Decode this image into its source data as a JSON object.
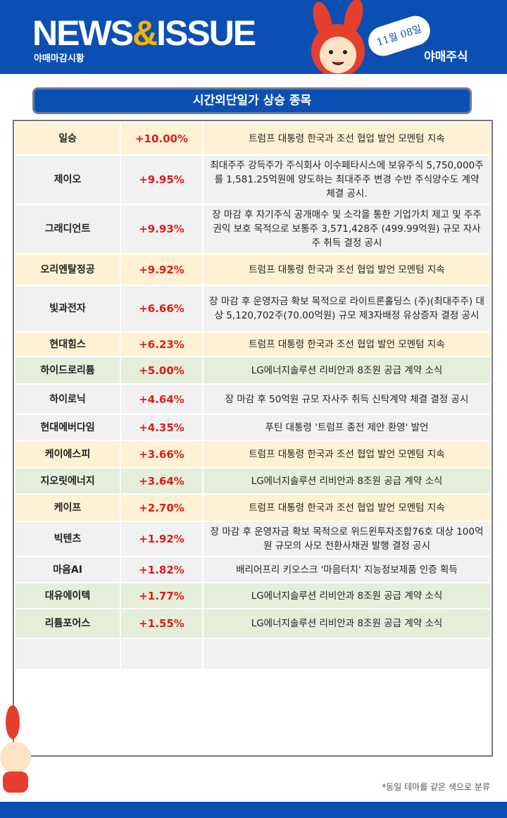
{
  "header": {
    "title_left": "NEWS",
    "title_amp": "&",
    "title_right": "ISSUE",
    "subtitle": "야매마감시황",
    "date": "11월 08일",
    "brand": "야매주식"
  },
  "section_title": "시간외단일가 상승 종목",
  "table": {
    "rows": [
      {
        "name": "일승",
        "change": "+10.00%",
        "desc": "트럼프 대통령 한국과 조선 협업 발언 모멘텀 지속",
        "color": "#fff2d4"
      },
      {
        "name": "제이오",
        "change": "+9.95%",
        "desc": "최대주주 강득주가 주식회사 이수페타시스에 보유주식 5,750,000주를 1,581.25억원에 양도하는 최대주주 변경 수반 주식양수도 계약 체결 공시.",
        "color": "#f1f1f1"
      },
      {
        "name": "그래디언트",
        "change": "+9.93%",
        "desc": "장 마감 후 자기주식 공개매수 및 소각을 통한 기업가치 제고 및 주주권익 보호 목적으로 보통주 3,571,428주 (499.99억원) 규모 자사주 취득 결정 공시",
        "color": "#f1f1f1"
      },
      {
        "name": "오리엔탈정공",
        "change": "+9.92%",
        "desc": "트럼프 대통령 한국과 조선 협업 발언 모멘텀 지속",
        "color": "#fff2d4"
      },
      {
        "name": "빛과전자",
        "change": "+6.66%",
        "desc": "장 마감 후 운영자금 확보 목적으로 라이트론홀딩스 (주)(최대주주) 대상 5,120,702주(70.00억원) 규모 제3자배정 유상증자 결정 공시",
        "color": "#f1f1f1"
      },
      {
        "name": "현대힘스",
        "change": "+6.23%",
        "desc": "트럼프 대통령 한국과 조선 협업 발언 모멘텀 지속",
        "color": "#fff2d4"
      },
      {
        "name": "하이드로리튬",
        "change": "+5.00%",
        "desc": "LG에너지솔루션 리비안과 8조원 공급 계약 소식",
        "color": "#e4eed9"
      },
      {
        "name": "하이로닉",
        "change": "+4.64%",
        "desc": "장 마감 후 50억원 규모 자사주 취득 신탁계약 체결 결정 공시",
        "color": "#f1f1f1"
      },
      {
        "name": "현대에버다임",
        "change": "+4.35%",
        "desc": "푸틴 대통령 '트럼프 종전 제안 환영' 발언",
        "color": "#f1f1f1"
      },
      {
        "name": "케이에스피",
        "change": "+3.66%",
        "desc": "트럼프 대통령 한국과 조선 협업 발언 모멘텀 지속",
        "color": "#fff2d4"
      },
      {
        "name": "지오릿에너지",
        "change": "+3.64%",
        "desc": "LG에너지솔루션 리비안과 8조원 공급 계약 소식",
        "color": "#e4eed9"
      },
      {
        "name": "케이프",
        "change": "+2.70%",
        "desc": "트럼프 대통령 한국과 조선 협업 발언 모멘텀 지속",
        "color": "#fff2d4"
      },
      {
        "name": "빅텐츠",
        "change": "+1.92%",
        "desc": "장 마감 후 운영자금 확보 목적으로 위드윈투자조합76호 대상 100억원 규모의 사모 전환사채권 발행 결정 공시",
        "color": "#f1f1f1"
      },
      {
        "name": "마음AI",
        "change": "+1.82%",
        "desc": "배리어프리 키오스크 '마음터치' 지능정보제품 인증 획득",
        "color": "#f1f1f1"
      },
      {
        "name": "대유에이텍",
        "change": "+1.77%",
        "desc": "LG에너지솔루션 리비안과 8조원 공급 계약 소식",
        "color": "#e4eed9"
      },
      {
        "name": "리튬포어스",
        "change": "+1.55%",
        "desc": "LG에너지솔루션 리비안과 8조원 공급 계약 소식",
        "color": "#e4eed9"
      }
    ]
  },
  "footnote": "*동일 테마를 같은 색으로 분류"
}
